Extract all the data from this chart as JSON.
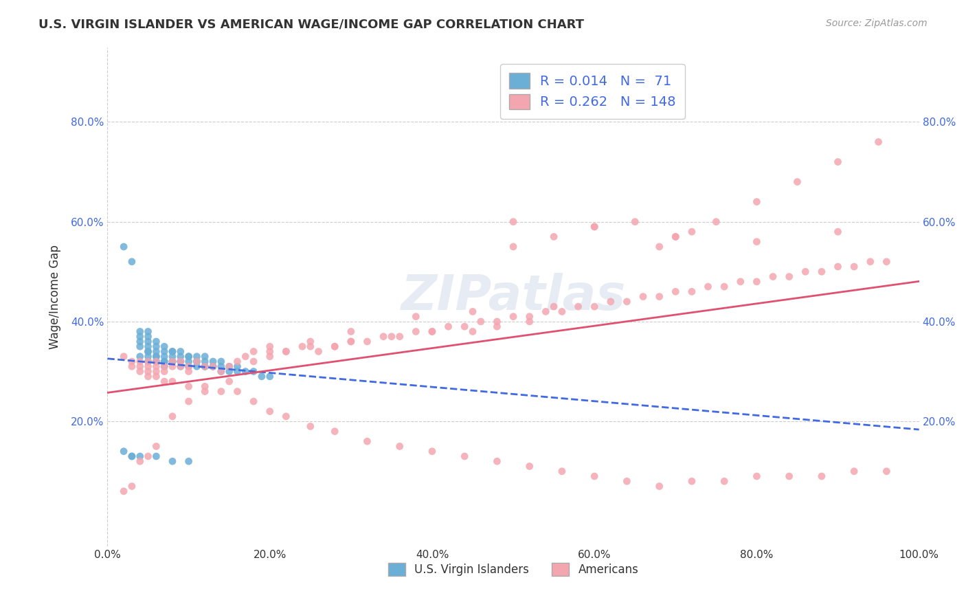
{
  "title": "U.S. VIRGIN ISLANDER VS AMERICAN WAGE/INCOME GAP CORRELATION CHART",
  "source": "Source: ZipAtlas.com",
  "ylabel": "Wage/Income Gap",
  "xlabel": "",
  "watermark": "ZIPatlas",
  "legend_box_color": "#f0f0f0",
  "background_color": "#ffffff",
  "grid_color": "#cccccc",
  "blue_color": "#6baed6",
  "pink_color": "#f4a6b0",
  "blue_line_color": "#4169E1",
  "pink_line_color": "#e05070",
  "R_blue": 0.014,
  "N_blue": 71,
  "R_pink": 0.262,
  "N_pink": 148,
  "blue_label": "U.S. Virgin Islanders",
  "pink_label": "Americans",
  "xlim": [
    0,
    1.0
  ],
  "ylim": [
    -0.05,
    0.95
  ],
  "xticks": [
    0.0,
    0.2,
    0.4,
    0.6,
    0.8,
    1.0
  ],
  "xtick_labels": [
    "0.0%",
    "20.0%",
    "40.0%",
    "60.0%",
    "80.0%",
    "100.0%"
  ],
  "ytick_labels": [
    "20.0%",
    "40.0%",
    "60.0%",
    "80.0%"
  ],
  "yticks": [
    0.2,
    0.4,
    0.6,
    0.8
  ],
  "blue_points_x": [
    0.02,
    0.03,
    0.04,
    0.04,
    0.04,
    0.04,
    0.04,
    0.05,
    0.05,
    0.05,
    0.05,
    0.05,
    0.05,
    0.05,
    0.05,
    0.06,
    0.06,
    0.06,
    0.06,
    0.06,
    0.06,
    0.06,
    0.07,
    0.07,
    0.07,
    0.07,
    0.07,
    0.07,
    0.08,
    0.08,
    0.08,
    0.08,
    0.08,
    0.09,
    0.09,
    0.09,
    0.09,
    0.09,
    0.1,
    0.1,
    0.1,
    0.1,
    0.11,
    0.11,
    0.11,
    0.11,
    0.12,
    0.12,
    0.12,
    0.12,
    0.13,
    0.13,
    0.13,
    0.14,
    0.14,
    0.14,
    0.15,
    0.15,
    0.16,
    0.16,
    0.17,
    0.18,
    0.19,
    0.2,
    0.02,
    0.03,
    0.03,
    0.04,
    0.06,
    0.08,
    0.1
  ],
  "blue_points_y": [
    0.55,
    0.52,
    0.38,
    0.37,
    0.36,
    0.35,
    0.33,
    0.38,
    0.37,
    0.36,
    0.35,
    0.34,
    0.34,
    0.33,
    0.32,
    0.36,
    0.35,
    0.34,
    0.33,
    0.33,
    0.32,
    0.32,
    0.35,
    0.34,
    0.33,
    0.32,
    0.32,
    0.31,
    0.34,
    0.34,
    0.33,
    0.32,
    0.32,
    0.34,
    0.33,
    0.32,
    0.32,
    0.31,
    0.33,
    0.33,
    0.32,
    0.31,
    0.33,
    0.32,
    0.32,
    0.31,
    0.33,
    0.32,
    0.31,
    0.31,
    0.32,
    0.31,
    0.31,
    0.32,
    0.31,
    0.3,
    0.31,
    0.3,
    0.31,
    0.3,
    0.3,
    0.3,
    0.29,
    0.29,
    0.14,
    0.13,
    0.13,
    0.13,
    0.13,
    0.12,
    0.12
  ],
  "pink_points_x": [
    0.02,
    0.03,
    0.03,
    0.04,
    0.04,
    0.04,
    0.05,
    0.05,
    0.05,
    0.06,
    0.06,
    0.06,
    0.07,
    0.07,
    0.08,
    0.08,
    0.09,
    0.09,
    0.1,
    0.1,
    0.11,
    0.12,
    0.13,
    0.14,
    0.15,
    0.16,
    0.17,
    0.18,
    0.2,
    0.22,
    0.24,
    0.26,
    0.28,
    0.3,
    0.32,
    0.34,
    0.36,
    0.38,
    0.4,
    0.42,
    0.44,
    0.46,
    0.48,
    0.5,
    0.52,
    0.54,
    0.56,
    0.58,
    0.6,
    0.62,
    0.64,
    0.66,
    0.68,
    0.7,
    0.72,
    0.74,
    0.76,
    0.78,
    0.8,
    0.82,
    0.84,
    0.86,
    0.88,
    0.9,
    0.92,
    0.94,
    0.96,
    0.5,
    0.55,
    0.6,
    0.65,
    0.35,
    0.4,
    0.45,
    0.48,
    0.52,
    0.2,
    0.25,
    0.3,
    0.28,
    0.18,
    0.22,
    0.7,
    0.75,
    0.8,
    0.85,
    0.9,
    0.95,
    0.72,
    0.68,
    0.05,
    0.06,
    0.07,
    0.08,
    0.1,
    0.12,
    0.14,
    0.16,
    0.18,
    0.2,
    0.22,
    0.25,
    0.28,
    0.32,
    0.36,
    0.4,
    0.44,
    0.48,
    0.52,
    0.56,
    0.6,
    0.64,
    0.68,
    0.72,
    0.76,
    0.8,
    0.84,
    0.88,
    0.92,
    0.96,
    0.55,
    0.45,
    0.38,
    0.3,
    0.25,
    0.2,
    0.15,
    0.12,
    0.1,
    0.08,
    0.06,
    0.05,
    0.04,
    0.03,
    0.02,
    0.5,
    0.6,
    0.7,
    0.8,
    0.9
  ],
  "pink_points_y": [
    0.33,
    0.32,
    0.31,
    0.31,
    0.3,
    0.32,
    0.31,
    0.3,
    0.32,
    0.31,
    0.3,
    0.32,
    0.31,
    0.3,
    0.32,
    0.31,
    0.32,
    0.31,
    0.31,
    0.3,
    0.32,
    0.31,
    0.31,
    0.3,
    0.31,
    0.32,
    0.33,
    0.32,
    0.33,
    0.34,
    0.35,
    0.34,
    0.35,
    0.36,
    0.36,
    0.37,
    0.37,
    0.38,
    0.38,
    0.39,
    0.39,
    0.4,
    0.4,
    0.41,
    0.41,
    0.42,
    0.42,
    0.43,
    0.43,
    0.44,
    0.44,
    0.45,
    0.45,
    0.46,
    0.46,
    0.47,
    0.47,
    0.48,
    0.48,
    0.49,
    0.49,
    0.5,
    0.5,
    0.51,
    0.51,
    0.52,
    0.52,
    0.55,
    0.57,
    0.59,
    0.6,
    0.37,
    0.38,
    0.38,
    0.39,
    0.4,
    0.34,
    0.35,
    0.36,
    0.35,
    0.34,
    0.34,
    0.57,
    0.6,
    0.64,
    0.68,
    0.72,
    0.76,
    0.58,
    0.55,
    0.29,
    0.29,
    0.28,
    0.28,
    0.27,
    0.27,
    0.26,
    0.26,
    0.24,
    0.22,
    0.21,
    0.19,
    0.18,
    0.16,
    0.15,
    0.14,
    0.13,
    0.12,
    0.11,
    0.1,
    0.09,
    0.08,
    0.07,
    0.08,
    0.08,
    0.09,
    0.09,
    0.09,
    0.1,
    0.1,
    0.43,
    0.42,
    0.41,
    0.38,
    0.36,
    0.35,
    0.28,
    0.26,
    0.24,
    0.21,
    0.15,
    0.13,
    0.12,
    0.07,
    0.06,
    0.6,
    0.59,
    0.57,
    0.56,
    0.58
  ]
}
